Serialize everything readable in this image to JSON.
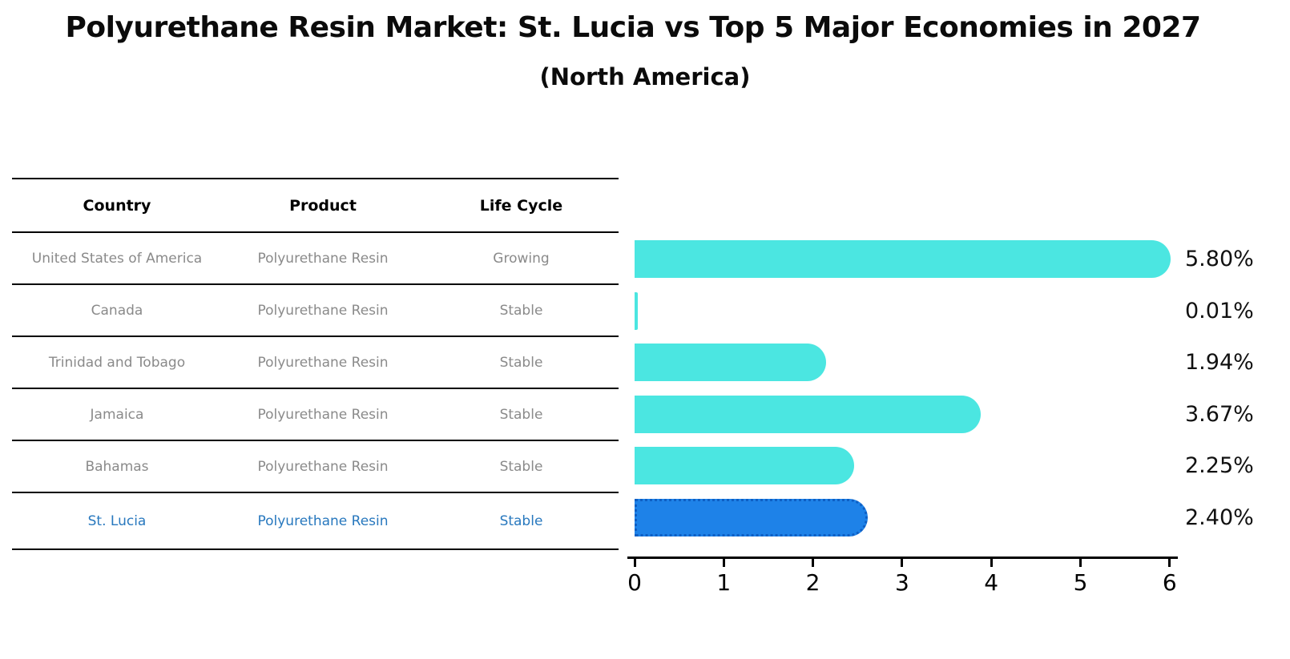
{
  "title": "Polyurethane Resin Market: St. Lucia vs Top 5 Major Economies in 2027",
  "subtitle": "(North America)",
  "table": {
    "headers": [
      "Country",
      "Product",
      "Life Cycle"
    ],
    "rows": [
      {
        "country": "United States of America",
        "product": "Polyurethane Resin",
        "life_cycle": "Growing",
        "highlight": false
      },
      {
        "country": "Canada",
        "product": "Polyurethane Resin",
        "life_cycle": "Stable",
        "highlight": false
      },
      {
        "country": "Trinidad and Tobago",
        "product": "Polyurethane Resin",
        "life_cycle": "Stable",
        "highlight": false
      },
      {
        "country": "Jamaica",
        "product": "Polyurethane Resin",
        "life_cycle": "Stable",
        "highlight": false
      },
      {
        "country": "Bahamas",
        "product": "Polyurethane Resin",
        "life_cycle": "Stable",
        "highlight": false
      },
      {
        "country": "St. Lucia",
        "product": "Polyurethane Resin",
        "life_cycle": "Stable",
        "highlight": true
      }
    ]
  },
  "chart_data": {
    "type": "bar",
    "orientation": "horizontal",
    "title": "Polyurethane Resin Market: St. Lucia vs Top 5 Major Economies in 2027 (North America)",
    "categories": [
      "United States of America",
      "Canada",
      "Trinidad and Tobago",
      "Jamaica",
      "Bahamas",
      "St. Lucia"
    ],
    "values": [
      5.8,
      0.01,
      1.94,
      3.67,
      2.25,
      2.4
    ],
    "value_labels": [
      "5.80%",
      "0.01%",
      "1.94%",
      "3.67%",
      "2.25%",
      "2.40%"
    ],
    "xlim": [
      0,
      6
    ],
    "xticks": [
      "0",
      "1",
      "2",
      "3",
      "4",
      "5",
      "6"
    ],
    "grid": "off",
    "legend": "none",
    "highlight_index": 5,
    "bar_color": "#4be6e1",
    "highlight_bar_color": "#1e82e8",
    "highlight_border_color": "#0e5fc4",
    "highlight_text_color": "#2878be"
  },
  "colors": {
    "background": "#ffffff",
    "bar_cyan": "#4be6e1",
    "bar_blue": "#1e82e8",
    "blue_text": "#2878be",
    "row_text": "#8a8a8a",
    "axis": "#000000"
  }
}
